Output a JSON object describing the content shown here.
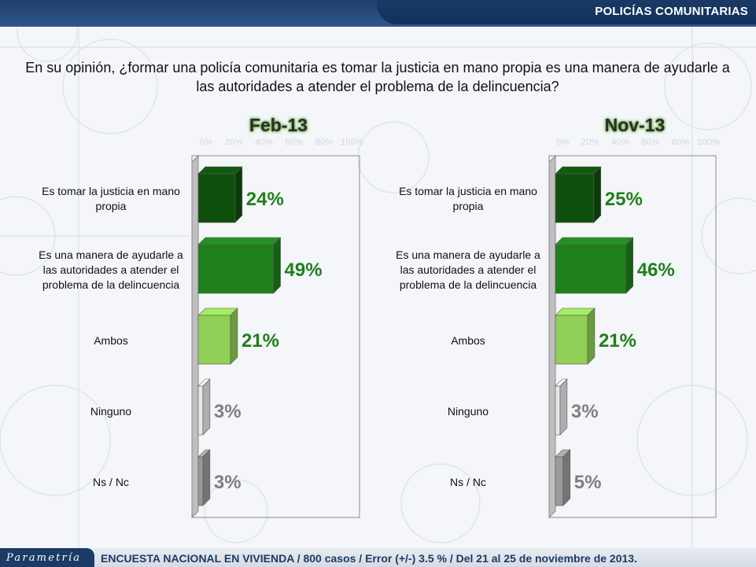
{
  "header": {
    "section_title": "POLICÍAS COMUNITARIAS"
  },
  "question": "En su opinión, ¿formar una policía comunitaria es tomar la justicia en mano propia es una manera de ayudarle a las autoridades a atender el problema de la delincuencia?",
  "footer": {
    "brand": "Parametría",
    "note": "ENCUESTA NACIONAL EN VIVIENDA / 800 casos / Error (+/-) 3.5 % / Del 21 al 25 de noviembre de 2013."
  },
  "colors": {
    "tomar": "#0f4f0c",
    "manera": "#1f7f1a",
    "ambos": "#8fcf55",
    "ninguno": "#e8e8e8",
    "nsnc": "#9a9a9a",
    "value_green": "#1f7f1a",
    "value_gray": "#7f7f7f"
  },
  "chart_data": [
    {
      "type": "bar",
      "orientation": "horizontal",
      "title": "Feb-13",
      "tick_labels": [
        "0%",
        "20%",
        "40%",
        "60%",
        "80%",
        "100%"
      ],
      "xlim": [
        0,
        100
      ],
      "categories": [
        "Es tomar la justicia en mano propia",
        "Es una manera de ayudarle a las autoridades a atender el problema de la delincuencia",
        "Ambos",
        "Ninguno",
        "Ns / Nc"
      ],
      "category_lines": [
        [
          "Es tomar la justicia en mano",
          "propia"
        ],
        [
          "Es una manera de ayudarle a",
          "las autoridades a atender el",
          "problema de la delincuencia"
        ],
        [
          "Ambos"
        ],
        [
          "Ninguno"
        ],
        [
          "Ns / Nc"
        ]
      ],
      "values": [
        24,
        49,
        21,
        3,
        3
      ],
      "value_labels": [
        "24%",
        "49%",
        "21%",
        "3%",
        "3%"
      ]
    },
    {
      "type": "bar",
      "orientation": "horizontal",
      "title": "Nov-13",
      "tick_labels": [
        "0%",
        "20%",
        "40%",
        "60%",
        "80%",
        "100%"
      ],
      "xlim": [
        0,
        100
      ],
      "categories": [
        "Es tomar la justicia en mano propia",
        "Es una manera de ayudarle a las autoridades a atender el problema de la delincuencia",
        "Ambos",
        "Ninguno",
        "Ns / Nc"
      ],
      "category_lines": [
        [
          "Es tomar la justicia en mano",
          "propia"
        ],
        [
          "Es una manera de ayudarle a",
          "las autoridades a atender el",
          "problema de la delincuencia"
        ],
        [
          "Ambos"
        ],
        [
          "Ninguno"
        ],
        [
          "Ns / Nc"
        ]
      ],
      "values": [
        25,
        46,
        21,
        3,
        5
      ],
      "value_labels": [
        "25%",
        "46%",
        "21%",
        "3%",
        "5%"
      ]
    }
  ]
}
